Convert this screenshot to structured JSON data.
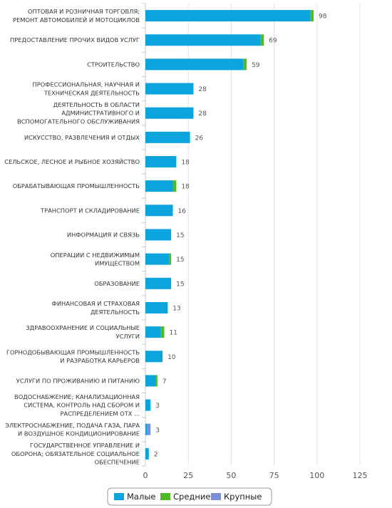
{
  "chart_data": {
    "type": "bar",
    "orientation": "horizontal",
    "stacked": true,
    "grid": true,
    "legend_position": "bottom-center",
    "xlim": [
      0,
      125
    ],
    "x_ticks": [
      "0",
      "25",
      "50",
      "75",
      "100",
      "125"
    ],
    "categories": [
      [
        "ОПТОВАЯ И РОЗНИЧНАЯ ТОРГОВЛЯ;",
        "РЕМОНТ АВТОМОБИЛЕЙ И МОТОЦИКЛОВ"
      ],
      [
        "ПРЕДОСТАВЛЕНИЕ ПРОЧИХ ВИДОВ УСЛУГ"
      ],
      [
        "СТРОИТЕЛЬСТВО"
      ],
      [
        "ПРОФЕССИОНАЛЬНАЯ, НАУЧНАЯ И",
        "ТЕХНИЧЕСКАЯ ДЕЯТЕЛЬНОСТЬ"
      ],
      [
        "ДЕЯТЕЛЬНОСТЬ В ОБЛАСТИ",
        "АДМИНИСТРАТИВНОГО И",
        "ВСПОМОГАТЕЛЬНОГО ОБСЛУЖИВАНИЯ"
      ],
      [
        "ИСКУССТВО, РАЗВЛЕЧЕНИЯ И ОТДЫХ"
      ],
      [
        "СЕЛЬСКОЕ, ЛЕСНОЕ И РЫБНОЕ ХОЗЯЙСТВО"
      ],
      [
        "ОБРАБАТЫВАЮЩАЯ ПРОМЫШЛЕННОСТЬ"
      ],
      [
        "ТРАНСПОРТ И СКЛАДИРОВАНИЕ"
      ],
      [
        "ИНФОРМАЦИЯ И СВЯЗЬ"
      ],
      [
        "ОПЕРАЦИИ С НЕДВИЖИМЫМ",
        "ИМУЩЕСТВОМ"
      ],
      [
        "ОБРАЗОВАНИЕ"
      ],
      [
        "ФИНАНСОВАЯ И СТРАХОВАЯ",
        "ДЕЯТЕЛЬНОСТЬ"
      ],
      [
        "ЗДРАВООХРАНЕНИЕ И СОЦИАЛЬНЫЕ",
        "УСЛУГИ"
      ],
      [
        "ГОРНОДОБЫВАЮЩАЯ ПРОМЫШЛЕННОСТЬ",
        "И РАЗРАБОТКА КАРЬЕРОВ"
      ],
      [
        "УСЛУГИ ПО ПРОЖИВАНИЮ И ПИТАНИЮ"
      ],
      [
        "ВОДОСНАБЖЕНИЕ; КАНАЛИЗАЦИОННАЯ",
        "СИСТЕМА, КОНТРОЛЬ НАД СБОРОМ И",
        "РАСПРЕДЕЛЕНИЕМ ОТХ ..."
      ],
      [
        "ЭЛЕКТРОСНАБЖЕНИЕ, ПОДАЧА ГАЗА, ПАРА",
        "И ВОЗДУШНОЕ КОНДИЦИОНИРОВАНИЕ"
      ],
      [
        "ГОСУДАРСТВЕННОЕ УПРАВЛЕНИЕ И",
        "ОБОРОНА; ОБЯЗАТЕЛЬНОЕ СОЦИАЛЬНОЕ",
        "ОБЕСПЕЧЕНИЕ"
      ]
    ],
    "series": [
      {
        "name": "Малые",
        "color": "#0ba4dd",
        "values": [
          96,
          67,
          57,
          28,
          28,
          26,
          18,
          16,
          16,
          15,
          14,
          15,
          13,
          9,
          10,
          6,
          3,
          1,
          2
        ]
      },
      {
        "name": "Средние",
        "color": "#50b928",
        "values": [
          2,
          2,
          2,
          0,
          0,
          0,
          0,
          2,
          0,
          0,
          1,
          0,
          0,
          2,
          0,
          1,
          0,
          0,
          0
        ]
      },
      {
        "name": "Крупные",
        "color": "#7a8fd6",
        "values": [
          0,
          0,
          0,
          0,
          0,
          0,
          0,
          0,
          0,
          0,
          0,
          0,
          0,
          0,
          0,
          0,
          0,
          2,
          0
        ]
      }
    ],
    "totals": [
      98,
      69,
      59,
      28,
      28,
      26,
      18,
      18,
      16,
      15,
      15,
      15,
      13,
      11,
      10,
      7,
      3,
      3,
      2
    ]
  }
}
